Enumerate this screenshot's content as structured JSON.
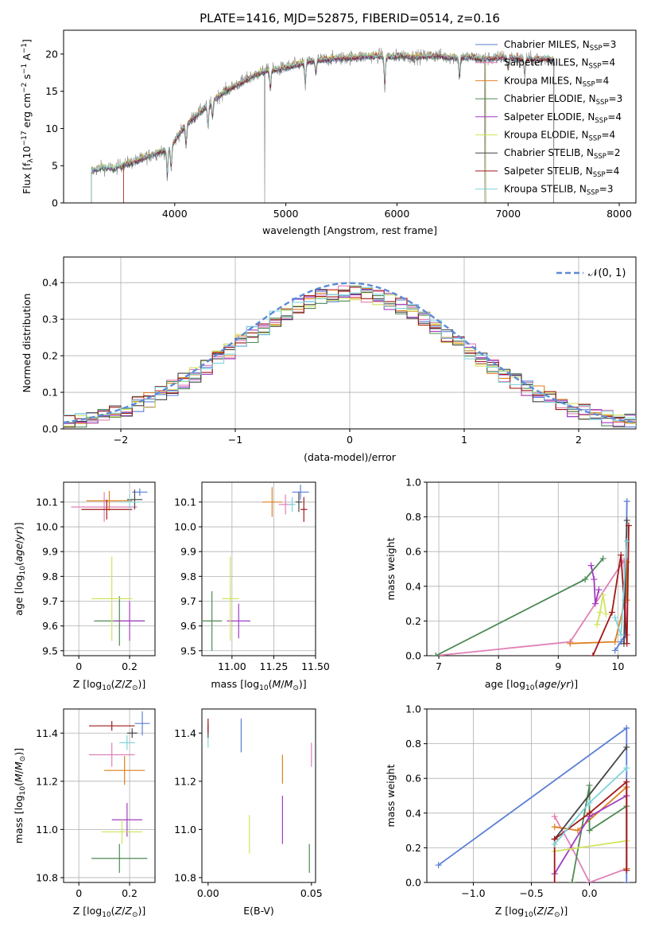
{
  "figure": {
    "title": "PLATE=1416, MJD=52875, FIBERID=0514, z=0.16"
  },
  "colors": {
    "Chabrier MILES": "#5b7fd6",
    "Salpeter MILES": "#e07fb6",
    "Kroupa MILES": "#de7f1f",
    "Chabrier ELODIE": "#4e8a55",
    "Salpeter ELODIE": "#a23cc0",
    "Kroupa ELODIE": "#d1e45e",
    "Chabrier STELIB": "#444444",
    "Salpeter STELIB": "#a01818",
    "Kroupa STELIB": "#7fd3dc",
    "data": "#808080",
    "grid": "#b0b0b0"
  },
  "chart_data": [
    {
      "id": "spectrum",
      "type": "line",
      "xlabel": "wavelength [Angstrom, rest frame]",
      "ylabel": "Flux [f_λ10^-17 erg cm^-2 s^-1 A^-1]",
      "xlim": [
        3000,
        8150
      ],
      "ylim": [
        0,
        23.2
      ],
      "xticks": [
        4000,
        5000,
        6000,
        7000,
        8000
      ],
      "yticks": [
        0,
        5,
        10,
        15,
        20
      ],
      "grid": false,
      "legend_position": "top-right",
      "legend": [
        {
          "name": "Chabrier MILES",
          "sub": "SSP",
          "n": 3
        },
        {
          "name": "Salpeter MILES",
          "sub": "SSP",
          "n": 4
        },
        {
          "name": "Kroupa MILES",
          "sub": "SSP",
          "n": 4
        },
        {
          "name": "Chabrier ELODIE",
          "sub": "SSP",
          "n": 3
        },
        {
          "name": "Salpeter ELODIE",
          "sub": "SSP",
          "n": 4
        },
        {
          "name": "Kroupa ELODIE",
          "sub": "SSP",
          "n": 4
        },
        {
          "name": "Chabrier STELIB",
          "sub": "SSP",
          "n": 2
        },
        {
          "name": "Salpeter STELIB",
          "sub": "SSP",
          "n": 4
        },
        {
          "name": "Kroupa STELIB",
          "sub": "SSP",
          "n": 3
        }
      ],
      "continuum": [
        [
          3250,
          4.3
        ],
        [
          3350,
          4.8
        ],
        [
          3450,
          4.6
        ],
        [
          3550,
          5.2
        ],
        [
          3650,
          5.6
        ],
        [
          3750,
          6.2
        ],
        [
          3850,
          6.8
        ],
        [
          3950,
          7.2
        ],
        [
          4050,
          9.5
        ],
        [
          4150,
          11.2
        ],
        [
          4250,
          12.5
        ],
        [
          4350,
          13.8
        ],
        [
          4450,
          15.0
        ],
        [
          4550,
          15.8
        ],
        [
          4650,
          16.6
        ],
        [
          4750,
          17.4
        ],
        [
          4850,
          17.8
        ],
        [
          4950,
          18.0
        ],
        [
          5050,
          18.4
        ],
        [
          5150,
          18.8
        ],
        [
          5250,
          19.1
        ],
        [
          5350,
          19.3
        ],
        [
          5450,
          19.4
        ],
        [
          5550,
          19.5
        ],
        [
          5650,
          19.6
        ],
        [
          5750,
          19.7
        ],
        [
          5850,
          19.8
        ],
        [
          5950,
          19.6
        ],
        [
          6050,
          19.8
        ],
        [
          6150,
          19.6
        ],
        [
          6250,
          19.7
        ],
        [
          6350,
          19.8
        ],
        [
          6450,
          19.6
        ],
        [
          6550,
          19.5
        ],
        [
          6650,
          19.6
        ],
        [
          6750,
          19.4
        ],
        [
          6850,
          19.4
        ],
        [
          6950,
          19.6
        ],
        [
          7050,
          19.5
        ],
        [
          7150,
          19.3
        ],
        [
          7250,
          19.3
        ],
        [
          7350,
          19.4
        ],
        [
          7420,
          19.2
        ]
      ],
      "absorption_features": [
        [
          3933,
          -4.0
        ],
        [
          3968,
          -3.5
        ],
        [
          4102,
          -3.0
        ],
        [
          4300,
          -3.5
        ],
        [
          4340,
          -2.5
        ],
        [
          4861,
          -3.0
        ],
        [
          5175,
          -3.5
        ],
        [
          5270,
          -2.0
        ],
        [
          5890,
          -4.5
        ],
        [
          6563,
          -3.0
        ],
        [
          7000,
          -2.0
        ],
        [
          7150,
          -2.5
        ]
      ],
      "spikes": [
        [
          4810,
          0
        ],
        [
          6790,
          0
        ],
        [
          7410,
          0
        ]
      ],
      "model_extents": [
        {
          "name": "Chabrier MILES",
          "x": [
            3540,
            7410
          ]
        },
        {
          "name": "Salpeter MILES",
          "x": [
            3540,
            7410
          ]
        },
        {
          "name": "Kroupa MILES",
          "x": [
            3540,
            7410
          ]
        },
        {
          "name": "Chabrier ELODIE",
          "x": [
            3250,
            6800
          ]
        },
        {
          "name": "Salpeter ELODIE",
          "x": [
            3250,
            6800
          ]
        },
        {
          "name": "Kroupa ELODIE",
          "x": [
            3250,
            6800
          ]
        },
        {
          "name": "Chabrier STELIB",
          "x": [
            3250,
            7410
          ]
        },
        {
          "name": "Salpeter STELIB",
          "x": [
            3540,
            7410
          ]
        },
        {
          "name": "Kroupa STELIB",
          "x": [
            3250,
            7410
          ]
        }
      ]
    },
    {
      "id": "residuals",
      "type": "step",
      "xlabel": "(data-model)/error",
      "ylabel": "Normed distribution",
      "xlim": [
        -2.5,
        2.5
      ],
      "ylim": [
        0,
        0.47
      ],
      "xticks": [
        -2,
        -1,
        0,
        1,
        2
      ],
      "xtick_labels": [
        "−2",
        "−1",
        "0",
        "1",
        "2"
      ],
      "yticks": [
        0.0,
        0.1,
        0.2,
        0.3,
        0.4
      ],
      "ytick_labels": [
        "0.0",
        "0.1",
        "0.2",
        "0.3",
        "0.4"
      ],
      "grid": true,
      "legend_position": "top-right",
      "legend": [
        {
          "name": "N(0,1)",
          "style": "dashed"
        }
      ],
      "bin_width": 0.1,
      "gaussian": {
        "mean": 0,
        "sigma": 1
      }
    },
    {
      "id": "age-vs-Z",
      "type": "errorbar",
      "xlabel": "Z [log10(Z/Z⊙)]",
      "ylabel": "age [log10(age/yr)]",
      "xlim": [
        -0.06,
        0.3
      ],
      "ylim": [
        9.48,
        10.18
      ],
      "xticks": [
        0.0,
        0.2
      ],
      "yticks": [
        9.5,
        9.6,
        9.7,
        9.8,
        9.9,
        10.0,
        10.1
      ],
      "grid": true,
      "points": [
        {
          "name": "Chabrier MILES",
          "x": 0.24,
          "xerr": 0.03,
          "y": 10.14,
          "yerr": 0.015
        },
        {
          "name": "Salpeter MILES",
          "x": 0.1,
          "xerr": 0.13,
          "y": 10.08,
          "yerr": 0.06
        },
        {
          "name": "Kroupa MILES",
          "x": 0.12,
          "xerr": 0.09,
          "y": 10.105,
          "yerr": 0.04
        },
        {
          "name": "Chabrier ELODIE",
          "x": 0.16,
          "xerr": 0.1,
          "y": 9.62,
          "yerr": 0.1
        },
        {
          "name": "Salpeter ELODIE",
          "x": 0.2,
          "xerr": 0.06,
          "y": 9.62,
          "yerr": 0.08
        },
        {
          "name": "Kroupa ELODIE",
          "x": 0.13,
          "xerr": 0.08,
          "y": 9.71,
          "yerr": 0.17
        },
        {
          "name": "Chabrier STELIB",
          "x": 0.22,
          "xerr": 0.03,
          "y": 10.11,
          "yerr": 0.04
        },
        {
          "name": "Salpeter STELIB",
          "x": 0.11,
          "xerr": 0.1,
          "y": 10.07,
          "yerr": 0.04
        },
        {
          "name": "Kroupa STELIB",
          "x": 0.2,
          "xerr": 0.04,
          "y": 10.1,
          "yerr": 0.03
        }
      ]
    },
    {
      "id": "age-vs-mass",
      "type": "errorbar",
      "xlabel": "mass [log10(M/M⊙)]",
      "ylabel": "",
      "xlim": [
        10.82,
        11.5
      ],
      "ylim": [
        9.48,
        10.18
      ],
      "xticks": [
        11.0,
        11.25,
        11.5
      ],
      "xtick_labels": [
        "11.00",
        "11.25",
        "11.50"
      ],
      "yticks": [
        9.5,
        9.6,
        9.7,
        9.8,
        9.9,
        10.0,
        10.1
      ],
      "grid": true,
      "points": [
        {
          "name": "Chabrier MILES",
          "x": 11.41,
          "xerr": 0.05,
          "y": 10.14,
          "yerr": 0.03
        },
        {
          "name": "Salpeter MILES",
          "x": 11.32,
          "xerr": 0.04,
          "y": 10.09,
          "yerr": 0.04
        },
        {
          "name": "Kroupa MILES",
          "x": 11.24,
          "xerr": 0.06,
          "y": 10.1,
          "yerr": 0.06
        },
        {
          "name": "Chabrier ELODIE",
          "x": 10.88,
          "xerr": 0.06,
          "y": 9.62,
          "yerr": 0.12
        },
        {
          "name": "Salpeter ELODIE",
          "x": 11.04,
          "xerr": 0.07,
          "y": 9.62,
          "yerr": 0.07
        },
        {
          "name": "Kroupa ELODIE",
          "x": 10.99,
          "xerr": 0.05,
          "y": 9.71,
          "yerr": 0.17
        },
        {
          "name": "Chabrier STELIB",
          "x": 11.4,
          "xerr": 0.02,
          "y": 10.1,
          "yerr": 0.04
        },
        {
          "name": "Salpeter STELIB",
          "x": 11.43,
          "xerr": 0.02,
          "y": 10.07,
          "yerr": 0.05
        },
        {
          "name": "Kroupa STELIB",
          "x": 11.36,
          "xerr": 0.02,
          "y": 10.09,
          "yerr": 0.03
        }
      ]
    },
    {
      "id": "weight-vs-age",
      "type": "line",
      "xlabel": "age  [log10(age/yr)]",
      "ylabel": "mass weight",
      "xlim": [
        6.8,
        10.3
      ],
      "ylim": [
        0,
        1.0
      ],
      "xticks": [
        7,
        8,
        9,
        10
      ],
      "yticks": [
        0.0,
        0.2,
        0.4,
        0.6,
        0.8,
        1.0
      ],
      "grid": true,
      "series": [
        {
          "name": "Chabrier MILES",
          "x": [
            9.95,
            10.05,
            10.12,
            10.15
          ],
          "y": [
            0.03,
            0.08,
            0.12,
            0.89
          ]
        },
        {
          "name": "Salpeter MILES",
          "x": [
            6.95,
            9.2,
            10.1,
            10.15
          ],
          "y": [
            0.0,
            0.08,
            0.55,
            0.12
          ]
        },
        {
          "name": "Kroupa MILES",
          "x": [
            9.2,
            9.95,
            10.12,
            10.15,
            10.15
          ],
          "y": [
            0.07,
            0.08,
            0.32,
            0.54,
            0.32
          ]
        },
        {
          "name": "Chabrier ELODIE",
          "x": [
            6.95,
            9.45,
            9.75
          ],
          "y": [
            0.0,
            0.44,
            0.56
          ]
        },
        {
          "name": "Salpeter ELODIE",
          "x": [
            9.55,
            9.6,
            9.62,
            9.68
          ],
          "y": [
            0.52,
            0.44,
            0.3,
            0.38
          ]
        },
        {
          "name": "Kroupa ELODIE",
          "x": [
            9.65,
            9.7,
            9.75,
            9.8
          ],
          "y": [
            0.18,
            0.25,
            0.35,
            0.24
          ]
        },
        {
          "name": "Chabrier STELIB",
          "x": [
            10.1,
            10.15
          ],
          "y": [
            0.07,
            0.78
          ]
        },
        {
          "name": "Salpeter STELIB",
          "x": [
            9.58,
            9.9,
            10.05,
            10.15,
            10.18
          ],
          "y": [
            0.0,
            0.25,
            0.58,
            0.07,
            0.75
          ]
        },
        {
          "name": "Kroupa STELIB",
          "x": [
            9.95,
            10.05,
            10.15
          ],
          "y": [
            0.22,
            0.12,
            0.66
          ]
        }
      ]
    },
    {
      "id": "mass-vs-Z",
      "type": "errorbar",
      "xlabel": "Z [log10(Z/Z⊙)]",
      "ylabel": "mass [log10(M/M⊙)]",
      "xlim": [
        -0.06,
        0.3
      ],
      "ylim": [
        10.78,
        11.5
      ],
      "xticks": [
        0.0,
        0.2
      ],
      "yticks": [
        10.8,
        11.0,
        11.2,
        11.4
      ],
      "grid": true,
      "points": [
        {
          "name": "Chabrier MILES",
          "x": 0.25,
          "xerr": 0.03,
          "y": 11.44,
          "yerr": 0.05
        },
        {
          "name": "Salpeter MILES",
          "x": 0.13,
          "xerr": 0.09,
          "y": 11.31,
          "yerr": 0.05
        },
        {
          "name": "Kroupa MILES",
          "x": 0.18,
          "xerr": 0.08,
          "y": 11.245,
          "yerr": 0.06
        },
        {
          "name": "Chabrier ELODIE",
          "x": 0.16,
          "xerr": 0.11,
          "y": 10.88,
          "yerr": 0.06
        },
        {
          "name": "Salpeter ELODIE",
          "x": 0.19,
          "xerr": 0.06,
          "y": 11.04,
          "yerr": 0.07
        },
        {
          "name": "Kroupa ELODIE",
          "x": 0.17,
          "xerr": 0.08,
          "y": 10.99,
          "yerr": 0.05
        },
        {
          "name": "Chabrier STELIB",
          "x": 0.21,
          "xerr": 0.02,
          "y": 11.4,
          "yerr": 0.02
        },
        {
          "name": "Salpeter STELIB",
          "x": 0.13,
          "xerr": 0.09,
          "y": 11.43,
          "yerr": 0.02
        },
        {
          "name": "Kroupa STELIB",
          "x": 0.19,
          "xerr": 0.03,
          "y": 11.36,
          "yerr": 0.03
        }
      ]
    },
    {
      "id": "mass-vs-EBV",
      "type": "errorbar",
      "xlabel": "E(B-V)",
      "ylabel": "",
      "xlim": [
        -0.003,
        0.052
      ],
      "ylim": [
        10.78,
        11.5
      ],
      "xticks": [
        0.0,
        0.05
      ],
      "xtick_labels": [
        "0.00",
        "0.05"
      ],
      "yticks": [
        10.8,
        11.0,
        11.2,
        11.4
      ],
      "grid": false,
      "points": [
        {
          "name": "Chabrier MILES",
          "x": 0.016,
          "y": 11.39,
          "yerr": 0.07
        },
        {
          "name": "Salpeter MILES",
          "x": 0.05,
          "y": 11.31,
          "yerr": 0.05
        },
        {
          "name": "Kroupa MILES",
          "x": 0.036,
          "y": 11.25,
          "yerr": 0.06
        },
        {
          "name": "Chabrier ELODIE",
          "x": 0.049,
          "y": 10.88,
          "yerr": 0.06
        },
        {
          "name": "Salpeter ELODIE",
          "x": 0.036,
          "y": 11.04,
          "yerr": 0.1
        },
        {
          "name": "Kroupa ELODIE",
          "x": 0.02,
          "y": 10.98,
          "yerr": 0.08
        },
        {
          "name": "Chabrier STELIB",
          "x": 0.0,
          "y": 11.41,
          "yerr": 0.03
        },
        {
          "name": "Salpeter STELIB",
          "x": 0.0,
          "y": 11.43,
          "yerr": 0.03
        },
        {
          "name": "Kroupa STELIB",
          "x": 0.0,
          "y": 11.36,
          "yerr": 0.02
        }
      ]
    },
    {
      "id": "weight-vs-Z",
      "type": "line",
      "xlabel": "Z [log10(Z/Z⊙)]",
      "ylabel": "mass weight",
      "xlim": [
        -1.4,
        0.4
      ],
      "ylim": [
        0,
        1.0
      ],
      "xticks": [
        -1.0,
        -0.5,
        0.0,
        0.5
      ],
      "xtick_labels": [
        "−1.0",
        "−0.5",
        "0.0",
        "0.5"
      ],
      "yticks": [
        0.0,
        0.2,
        0.4,
        0.6,
        0.8,
        1.0
      ],
      "grid": true,
      "series": [
        {
          "name": "Chabrier MILES",
          "x": [
            -1.3,
            0.32,
            0.32,
            0.32
          ],
          "y": [
            0.1,
            0.89,
            0.08,
            0.0
          ]
        },
        {
          "name": "Salpeter MILES",
          "x": [
            -0.3,
            -0.15,
            0.0,
            0.32,
            0.32
          ],
          "y": [
            0.38,
            0.2,
            0.0,
            0.08,
            0.55
          ]
        },
        {
          "name": "Kroupa MILES",
          "x": [
            -0.3,
            -0.1,
            0.32,
            0.32
          ],
          "y": [
            0.32,
            0.3,
            0.55,
            0.08
          ]
        },
        {
          "name": "Chabrier ELODIE",
          "x": [
            -0.15,
            0.0,
            0.0,
            0.32
          ],
          "y": [
            0.0,
            0.56,
            0.3,
            0.44
          ]
        },
        {
          "name": "Salpeter ELODIE",
          "x": [
            -0.3,
            0.0,
            0.32
          ],
          "y": [
            0.05,
            0.38,
            0.5
          ]
        },
        {
          "name": "Kroupa ELODIE",
          "x": [
            -0.3,
            0.32
          ],
          "y": [
            0.18,
            0.24
          ]
        },
        {
          "name": "Chabrier STELIB",
          "x": [
            -0.3,
            0.32
          ],
          "y": [
            0.25,
            0.78
          ]
        },
        {
          "name": "Salpeter STELIB",
          "x": [
            -0.3,
            -0.3,
            0.0,
            0.32,
            0.32
          ],
          "y": [
            0.0,
            0.25,
            0.4,
            0.58,
            0.07
          ]
        },
        {
          "name": "Kroupa STELIB",
          "x": [
            -0.3,
            0.0,
            0.32
          ],
          "y": [
            0.22,
            0.46,
            0.66
          ]
        }
      ]
    }
  ]
}
